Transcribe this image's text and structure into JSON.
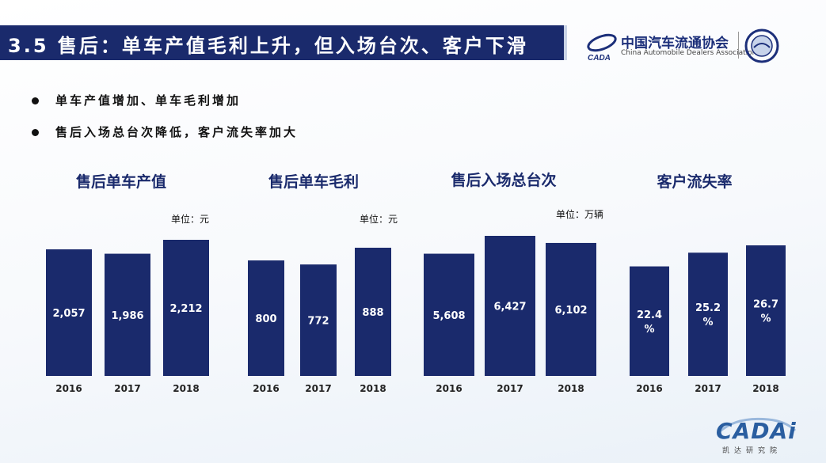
{
  "slide": {
    "title": "3.5 售后：单车产值毛利上升，但入场台次、客户下滑",
    "bullets": [
      "单车产值增加、单车毛利增加",
      "售后入场总台次降低，客户流失率加大"
    ]
  },
  "header_logo": {
    "cn": "中国汽车流通协会",
    "en": "China Automobile Dealers Association",
    "mark_text": "CADA"
  },
  "footer_logo": {
    "en": "CADAi",
    "cn": "凯达研究院"
  },
  "colors": {
    "bar": "#1a2a6c",
    "title_bg": "#1a2a6c",
    "chart_title": "#1a2a6c",
    "label": "#ffffff"
  },
  "chart_data": [
    {
      "type": "bar",
      "title": "售后单车产值",
      "unit": "单位：元",
      "categories": [
        "2016",
        "2017",
        "2018"
      ],
      "values": [
        2057,
        1986,
        2212
      ],
      "labels": [
        "2,057",
        "1,986",
        "2,212"
      ]
    },
    {
      "type": "bar",
      "title": "售后单车毛利",
      "unit": "单位：元",
      "categories": [
        "2016",
        "2017",
        "2018"
      ],
      "values": [
        800,
        772,
        888
      ],
      "labels": [
        "800",
        "772",
        "888"
      ]
    },
    {
      "type": "bar",
      "title": "售后入场总台次",
      "unit": "单位：万辆",
      "categories": [
        "2016",
        "2017",
        "2018"
      ],
      "values": [
        5608,
        6427,
        6102
      ],
      "labels": [
        "5,608",
        "6,427",
        "6,102"
      ]
    },
    {
      "type": "bar",
      "title": "客户流失率",
      "unit": "",
      "categories": [
        "2016",
        "2017",
        "2018"
      ],
      "values": [
        22.4,
        25.2,
        26.7
      ],
      "labels": [
        "22.4\n%",
        "25.2\n%",
        "26.7\n%"
      ]
    }
  ]
}
